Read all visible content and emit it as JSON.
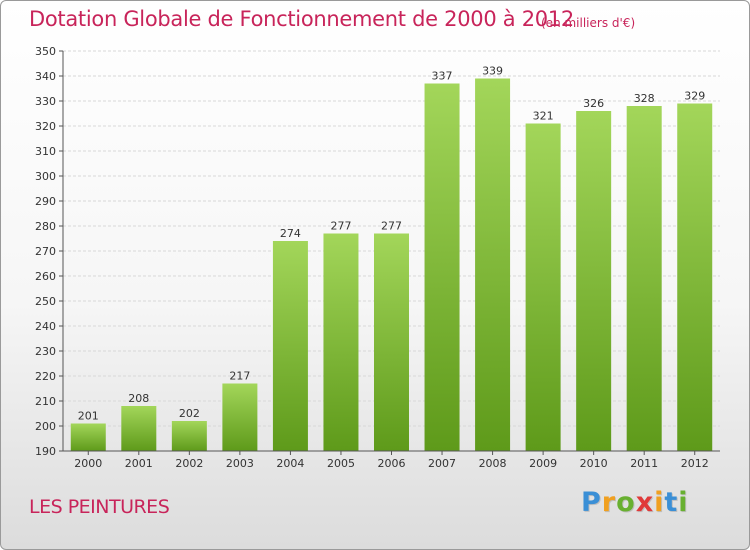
{
  "title": "Dotation Globale de Fonctionnement de 2000 à 2012",
  "unit": "(en milliers d'€)",
  "commune": "LES PEINTURES",
  "logo": {
    "letters": [
      "P",
      "r",
      "o",
      "x",
      "i",
      "t",
      "i"
    ],
    "colors": [
      "#3a8fd6",
      "#f0a020",
      "#68b030",
      "#e03a3a",
      "#f0a020",
      "#3a8fd6",
      "#68b030"
    ]
  },
  "colors": {
    "bar_top": "#a3d65a",
    "bar_bottom": "#5e9a1a",
    "grid": "#d8d8d8",
    "axis": "#555555",
    "text": "#333333"
  },
  "chart_data": {
    "type": "bar",
    "categories": [
      "2000",
      "2001",
      "2002",
      "2003",
      "2004",
      "2005",
      "2006",
      "2007",
      "2008",
      "2009",
      "2010",
      "2011",
      "2012"
    ],
    "values": [
      201,
      208,
      202,
      217,
      274,
      277,
      277,
      337,
      339,
      321,
      326,
      328,
      329
    ],
    "ylim": [
      190,
      350
    ],
    "yticks": [
      190,
      200,
      210,
      220,
      230,
      240,
      250,
      260,
      270,
      280,
      290,
      300,
      310,
      320,
      330,
      340,
      350
    ],
    "grid": true,
    "data_labels": true
  }
}
